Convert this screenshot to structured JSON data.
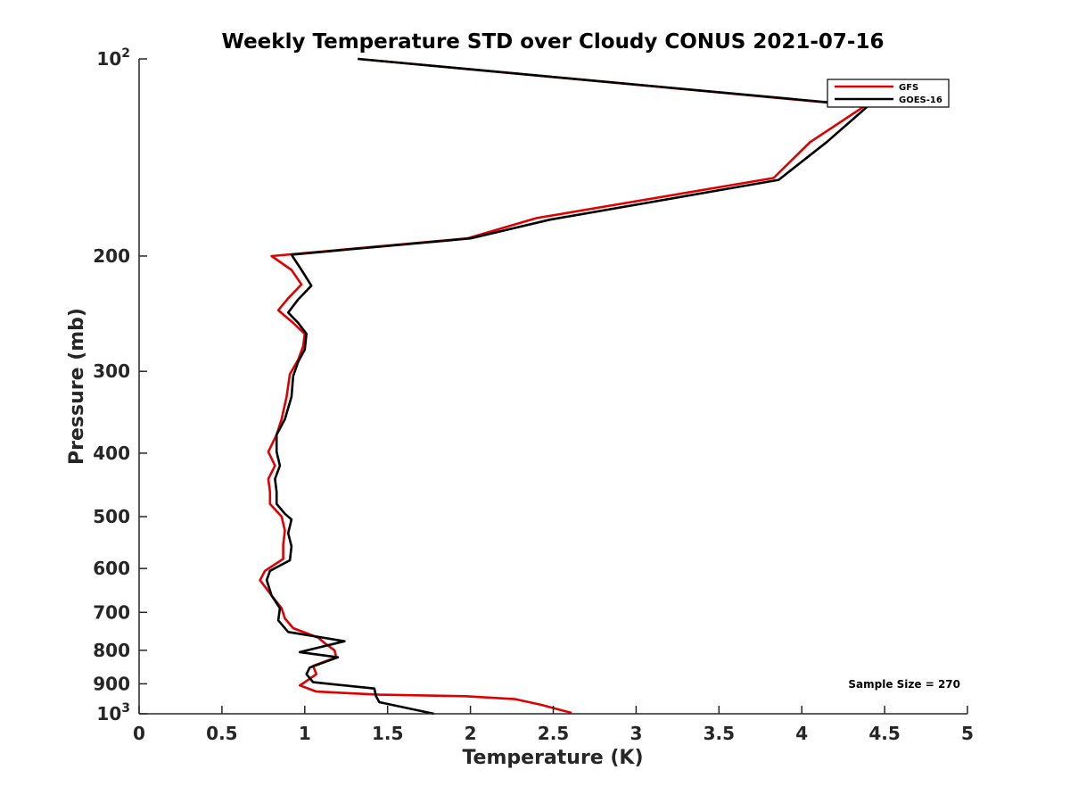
{
  "chart_data": {
    "type": "line",
    "title": "Weekly Temperature STD over Cloudy CONUS 2021-07-16",
    "xlabel": "Temperature (K)",
    "ylabel": "Pressure (mb)",
    "xlim": [
      0,
      5
    ],
    "ylim": [
      100,
      1000
    ],
    "y_scale": "log",
    "y_reversed": true,
    "grid": false,
    "legend_position": "top-right",
    "x_ticks": [
      "0",
      "0.5",
      "1",
      "1.5",
      "2",
      "2.5",
      "3",
      "3.5",
      "4",
      "4.5",
      "5"
    ],
    "y_ticks": [
      {
        "value": 100,
        "base": "10",
        "exp": "2"
      },
      {
        "value": 200,
        "label": "200"
      },
      {
        "value": 300,
        "label": "300"
      },
      {
        "value": 400,
        "label": "400"
      },
      {
        "value": 500,
        "label": "500"
      },
      {
        "value": 600,
        "label": "600"
      },
      {
        "value": 700,
        "label": "700"
      },
      {
        "value": 800,
        "label": "800"
      },
      {
        "value": 900,
        "label": "900"
      },
      {
        "value": 1000,
        "base": "10",
        "exp": "3"
      }
    ],
    "annotation": "Sample Size = 270",
    "series": [
      {
        "name": "GFS",
        "color": "#e00000",
        "points": [
          [
            1.32,
            100
          ],
          [
            4.38,
            118
          ],
          [
            4.05,
            134
          ],
          [
            3.83,
            152
          ],
          [
            2.4,
            175
          ],
          [
            1.98,
            188
          ],
          [
            0.8,
            200
          ],
          [
            0.92,
            210
          ],
          [
            0.98,
            221
          ],
          [
            0.9,
            232
          ],
          [
            0.84,
            242
          ],
          [
            0.93,
            253
          ],
          [
            1.0,
            263
          ],
          [
            0.99,
            275
          ],
          [
            0.96,
            288
          ],
          [
            0.91,
            303
          ],
          [
            0.89,
            328
          ],
          [
            0.86,
            355
          ],
          [
            0.83,
            375
          ],
          [
            0.78,
            398
          ],
          [
            0.82,
            418
          ],
          [
            0.78,
            438
          ],
          [
            0.79,
            458
          ],
          [
            0.79,
            478
          ],
          [
            0.86,
            500
          ],
          [
            0.88,
            525
          ],
          [
            0.87,
            552
          ],
          [
            0.87,
            580
          ],
          [
            0.76,
            605
          ],
          [
            0.73,
            625
          ],
          [
            0.8,
            660
          ],
          [
            0.86,
            690
          ],
          [
            0.88,
            715
          ],
          [
            0.93,
            740
          ],
          [
            1.08,
            765
          ],
          [
            1.12,
            780
          ],
          [
            1.18,
            800
          ],
          [
            1.19,
            820
          ],
          [
            1.05,
            845
          ],
          [
            1.07,
            870
          ],
          [
            1.0,
            895
          ],
          [
            0.97,
            905
          ],
          [
            1.07,
            925
          ],
          [
            1.45,
            935
          ],
          [
            1.97,
            940
          ],
          [
            2.27,
            950
          ],
          [
            2.42,
            968
          ],
          [
            2.61,
            997
          ]
        ]
      },
      {
        "name": "GOES-16",
        "color": "#000000",
        "points": [
          [
            1.32,
            100
          ],
          [
            4.4,
            118
          ],
          [
            4.15,
            134
          ],
          [
            3.86,
            153
          ],
          [
            2.48,
            176
          ],
          [
            2.0,
            188
          ],
          [
            0.92,
            199
          ],
          [
            0.98,
            210
          ],
          [
            1.04,
            222
          ],
          [
            0.96,
            233
          ],
          [
            0.9,
            244
          ],
          [
            0.96,
            253
          ],
          [
            1.01,
            263
          ],
          [
            1.0,
            278
          ],
          [
            0.96,
            290
          ],
          [
            0.93,
            305
          ],
          [
            0.92,
            328
          ],
          [
            0.88,
            355
          ],
          [
            0.83,
            375
          ],
          [
            0.83,
            398
          ],
          [
            0.85,
            418
          ],
          [
            0.82,
            438
          ],
          [
            0.83,
            458
          ],
          [
            0.83,
            478
          ],
          [
            0.88,
            495
          ],
          [
            0.92,
            505
          ],
          [
            0.9,
            530
          ],
          [
            0.92,
            555
          ],
          [
            0.91,
            583
          ],
          [
            0.79,
            605
          ],
          [
            0.77,
            625
          ],
          [
            0.8,
            660
          ],
          [
            0.85,
            690
          ],
          [
            0.84,
            720
          ],
          [
            0.9,
            750
          ],
          [
            1.24,
            775
          ],
          [
            0.97,
            805
          ],
          [
            1.2,
            820
          ],
          [
            1.03,
            850
          ],
          [
            1.01,
            870
          ],
          [
            1.05,
            895
          ],
          [
            1.42,
            915
          ],
          [
            1.43,
            940
          ],
          [
            1.45,
            960
          ],
          [
            1.78,
            1000
          ]
        ]
      }
    ]
  }
}
